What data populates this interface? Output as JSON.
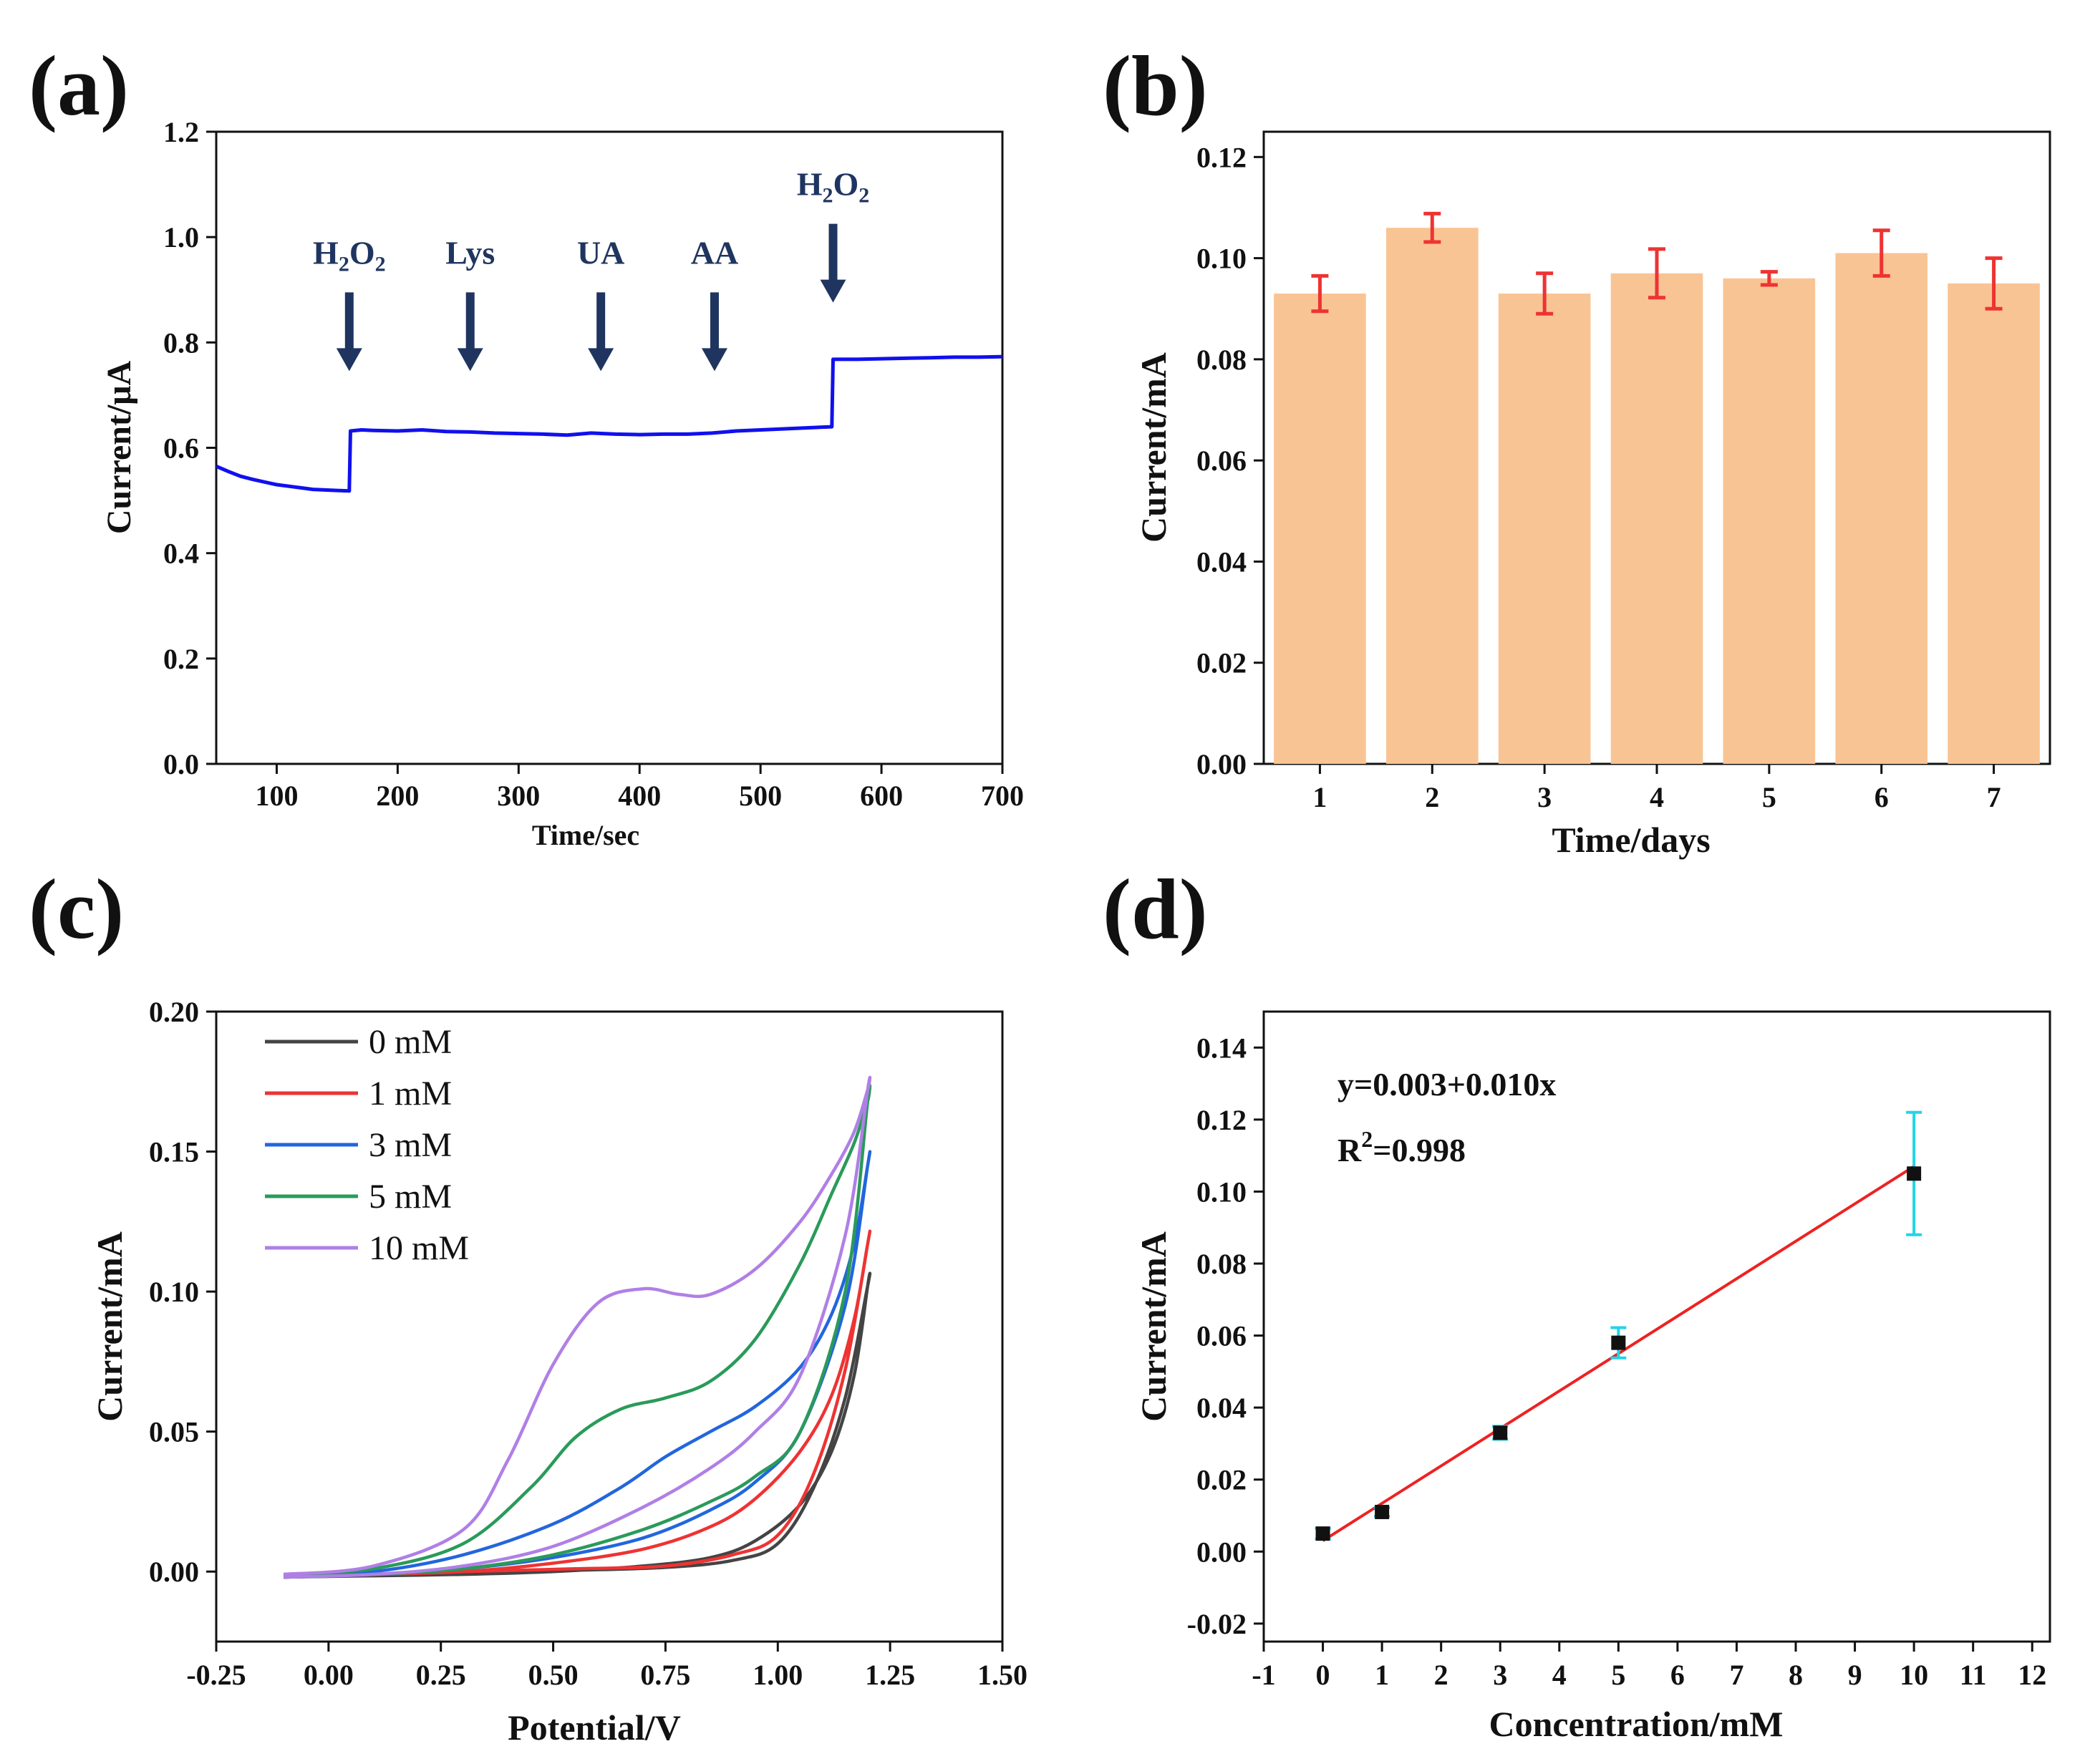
{
  "chart_data": [
    {
      "panel": "(a)",
      "type": "line",
      "xlabel": "Time/sec",
      "ylabel": "Current/μA",
      "xlim": [
        50,
        700
      ],
      "ylim": [
        0.0,
        1.2
      ],
      "xticks": [
        "100",
        "200",
        "300",
        "400",
        "500",
        "600",
        "700"
      ],
      "yticks": [
        "0.0",
        "0.2",
        "0.4",
        "0.6",
        "0.8",
        "1.0",
        "1.2"
      ],
      "color": "#1010ee",
      "series": [
        {
          "name": "current",
          "x": [
            50,
            60,
            70,
            80,
            90,
            100,
            110,
            120,
            130,
            140,
            150,
            160,
            161,
            170,
            180,
            200,
            220,
            240,
            260,
            280,
            300,
            320,
            340,
            360,
            380,
            400,
            420,
            440,
            460,
            480,
            500,
            520,
            540,
            559,
            560,
            580,
            600,
            620,
            640,
            660,
            680,
            700
          ],
          "y": [
            0.565,
            0.555,
            0.546,
            0.54,
            0.535,
            0.53,
            0.527,
            0.524,
            0.521,
            0.52,
            0.519,
            0.518,
            0.632,
            0.634,
            0.633,
            0.632,
            0.634,
            0.631,
            0.63,
            0.628,
            0.627,
            0.626,
            0.624,
            0.628,
            0.626,
            0.625,
            0.626,
            0.626,
            0.628,
            0.632,
            0.634,
            0.636,
            0.638,
            0.64,
            0.768,
            0.768,
            0.769,
            0.77,
            0.771,
            0.772,
            0.772,
            0.773
          ]
        }
      ],
      "annotations": [
        {
          "main": "H",
          "sub1": "2",
          "mid": "O",
          "sub2": "2",
          "x": 160,
          "y": 0.8
        },
        {
          "main": "Lys",
          "x": 260,
          "y": 0.8
        },
        {
          "main": "UA",
          "x": 368,
          "y": 0.8
        },
        {
          "main": "AA",
          "x": 462,
          "y": 0.8
        },
        {
          "main": "H",
          "sub1": "2",
          "mid": "O",
          "sub2": "2",
          "x": 560,
          "y": 0.93
        }
      ]
    },
    {
      "panel": "(b)",
      "type": "bar",
      "xlabel": "Time/days",
      "ylabel": "Current/mA",
      "categories": [
        "1",
        "2",
        "3",
        "4",
        "5",
        "6",
        "7"
      ],
      "values": [
        0.093,
        0.106,
        0.093,
        0.097,
        0.096,
        0.101,
        0.095
      ],
      "errors": [
        0.0035,
        0.0028,
        0.004,
        0.0048,
        0.0013,
        0.0045,
        0.005
      ],
      "ylim": [
        0.0,
        0.125
      ],
      "yticks": [
        "0.00",
        "0.02",
        "0.04",
        "0.06",
        "0.08",
        "0.10",
        "0.12"
      ],
      "bar_color": "#f9c494",
      "error_color": "#ee3333"
    },
    {
      "panel": "(c)",
      "type": "line",
      "xlabel": "Potential/V",
      "ylabel": "Current/mA",
      "xlim": [
        -0.25,
        1.5
      ],
      "ylim": [
        -0.025,
        0.2
      ],
      "xticks": [
        "-0.25",
        "0.00",
        "0.25",
        "0.50",
        "0.75",
        "1.00",
        "1.25",
        "1.50"
      ],
      "yticks": [
        "0.00",
        "0.05",
        "0.10",
        "0.15",
        "0.20"
      ],
      "series": [
        {
          "name": "0 mM",
          "color": "#444444",
          "x": [
            -0.1,
            0.1,
            0.3,
            0.5,
            0.7,
            0.85,
            0.95,
            1.05,
            1.12,
            1.17,
            1.2,
            1.2,
            1.15,
            1.08,
            1.0,
            0.9,
            0.75,
            0.55,
            0.3,
            0.1,
            -0.1
          ],
          "y": [
            -0.002,
            -0.0015,
            -0.001,
            0.0,
            0.002,
            0.005,
            0.011,
            0.024,
            0.043,
            0.07,
            0.102,
            0.102,
            0.062,
            0.03,
            0.01,
            0.004,
            0.0015,
            0.0005,
            0.0,
            -0.001,
            -0.002
          ]
        },
        {
          "name": "1 mM",
          "color": "#ee3333",
          "x": [
            -0.1,
            0.1,
            0.3,
            0.5,
            0.7,
            0.85,
            0.95,
            1.05,
            1.12,
            1.17,
            1.2,
            1.2,
            1.15,
            1.08,
            1.0,
            0.9,
            0.75,
            0.55,
            0.3,
            0.1,
            -0.1
          ],
          "y": [
            -0.0018,
            -0.001,
            0.0,
            0.003,
            0.008,
            0.016,
            0.026,
            0.043,
            0.063,
            0.09,
            0.117,
            0.117,
            0.072,
            0.035,
            0.013,
            0.006,
            0.002,
            0.001,
            0.0,
            -0.001,
            -0.002
          ]
        },
        {
          "name": "3 mM",
          "color": "#2266dd",
          "x": [
            -0.1,
            0.1,
            0.3,
            0.5,
            0.65,
            0.75,
            0.85,
            0.95,
            1.05,
            1.12,
            1.17,
            1.2,
            1.2,
            1.15,
            1.05,
            0.95,
            0.85,
            0.7,
            0.5,
            0.3,
            0.1,
            -0.1
          ],
          "y": [
            -0.0015,
            0.0,
            0.006,
            0.017,
            0.03,
            0.041,
            0.05,
            0.059,
            0.073,
            0.092,
            0.117,
            0.145,
            0.145,
            0.095,
            0.05,
            0.032,
            0.022,
            0.012,
            0.005,
            0.001,
            -0.001,
            -0.002
          ]
        },
        {
          "name": "5 mM",
          "color": "#2a9a5a",
          "x": [
            -0.1,
            0.1,
            0.3,
            0.45,
            0.55,
            0.65,
            0.75,
            0.85,
            0.95,
            1.05,
            1.12,
            1.17,
            1.2,
            1.2,
            1.15,
            1.05,
            0.95,
            0.85,
            0.7,
            0.5,
            0.3,
            0.1,
            -0.1
          ],
          "y": [
            -0.001,
            0.001,
            0.01,
            0.03,
            0.048,
            0.058,
            0.062,
            0.068,
            0.083,
            0.11,
            0.135,
            0.153,
            0.168,
            0.168,
            0.1,
            0.05,
            0.034,
            0.025,
            0.015,
            0.006,
            0.001,
            -0.001,
            -0.002
          ]
        },
        {
          "name": "10 mM",
          "color": "#b07fe6",
          "x": [
            -0.1,
            0.1,
            0.3,
            0.4,
            0.5,
            0.6,
            0.7,
            0.78,
            0.85,
            0.95,
            1.05,
            1.12,
            1.17,
            1.2,
            1.2,
            1.15,
            1.05,
            0.95,
            0.85,
            0.7,
            0.5,
            0.3,
            0.1,
            -0.1
          ],
          "y": [
            -0.001,
            0.002,
            0.015,
            0.04,
            0.074,
            0.096,
            0.101,
            0.099,
            0.099,
            0.108,
            0.125,
            0.142,
            0.157,
            0.172,
            0.172,
            0.12,
            0.07,
            0.05,
            0.037,
            0.023,
            0.009,
            0.002,
            -0.001,
            -0.002
          ]
        }
      ],
      "legend": [
        "0 mM",
        "1 mM",
        "3 mM",
        "5 mM",
        "10 mM"
      ]
    },
    {
      "panel": "(d)",
      "type": "scatter",
      "xlabel": "Concentration/mM",
      "ylabel": "Current/mA",
      "xlim": [
        -1,
        12.3
      ],
      "ylim": [
        -0.025,
        0.15
      ],
      "xticks": [
        "-1",
        "0",
        "1",
        "2",
        "3",
        "4",
        "5",
        "6",
        "7",
        "8",
        "9",
        "10",
        "11",
        "12"
      ],
      "yticks": [
        "-0.02",
        "0.00",
        "0.02",
        "0.04",
        "0.06",
        "0.08",
        "0.10",
        "0.12",
        "0.14"
      ],
      "points": {
        "x": [
          0,
          1,
          3,
          5,
          10
        ],
        "y": [
          0.005,
          0.011,
          0.033,
          0.058,
          0.105
        ],
        "err": [
          0.0015,
          0.0012,
          0.0018,
          0.0042,
          0.017
        ]
      },
      "fit": {
        "intercept": 0.003,
        "slope": 0.0104,
        "x": [
          0,
          10
        ],
        "color": "#ee2222"
      },
      "error_color": "#22d4e8",
      "equation": "y=0.003+0.010x",
      "r2_prefix": "R",
      "r2_sup": "2",
      "r2_value": "=0.998"
    }
  ]
}
